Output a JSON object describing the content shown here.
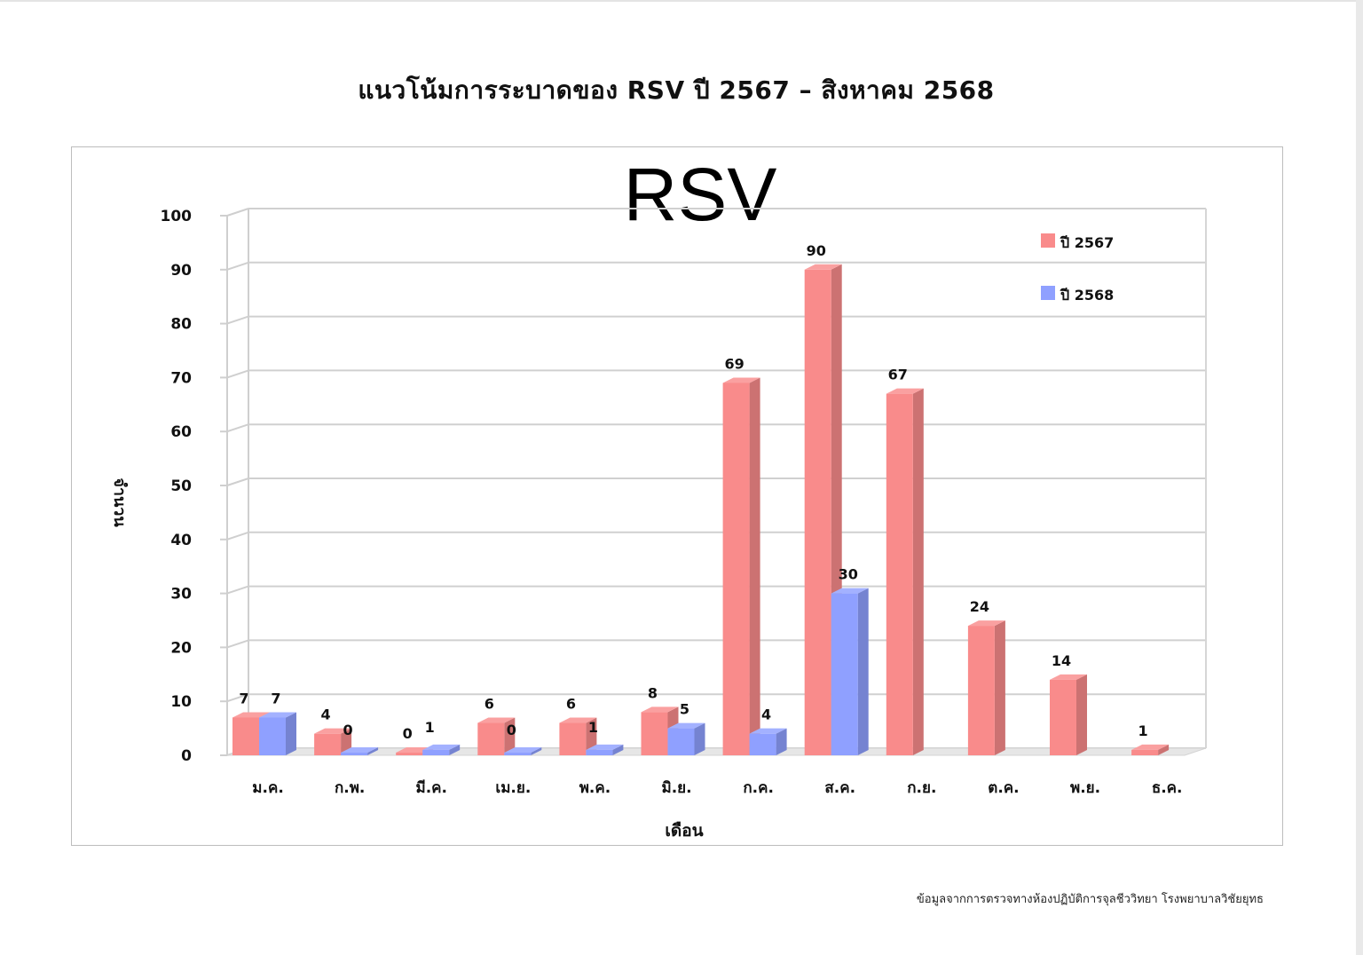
{
  "page": {
    "title": "แนวโน้มการระบาดของ RSV ปี 2567 – สิงหาคม 2568",
    "source_note": "ข้อมูลจากการตรวจทางห้องปฏิบัติการจุลชีววิทยา โรงพยาบาลวิชัยยุทธ"
  },
  "chart_data": {
    "type": "bar",
    "title": "RSV",
    "xlabel": "เดือน",
    "ylabel": "จำนวน",
    "ylim": [
      0,
      100
    ],
    "yticks": [
      0,
      10,
      20,
      30,
      40,
      50,
      60,
      70,
      80,
      90,
      100
    ],
    "grid": true,
    "legend_position": "top-right",
    "categories": [
      "ม.ค.",
      "ก.พ.",
      "มี.ค.",
      "เม.ย.",
      "พ.ค.",
      "มิ.ย.",
      "ก.ค.",
      "ส.ค.",
      "ก.ย.",
      "ต.ค.",
      "พ.ย.",
      "ธ.ค."
    ],
    "series": [
      {
        "name": "ปี 2567",
        "color": "#f98b8b",
        "values": [
          7,
          4,
          0,
          6,
          6,
          8,
          69,
          90,
          67,
          24,
          14,
          1
        ]
      },
      {
        "name": "ปี 2568",
        "color": "#8fa0ff",
        "values": [
          7,
          0,
          1,
          0,
          1,
          5,
          4,
          30,
          null,
          null,
          null,
          null
        ]
      }
    ]
  }
}
